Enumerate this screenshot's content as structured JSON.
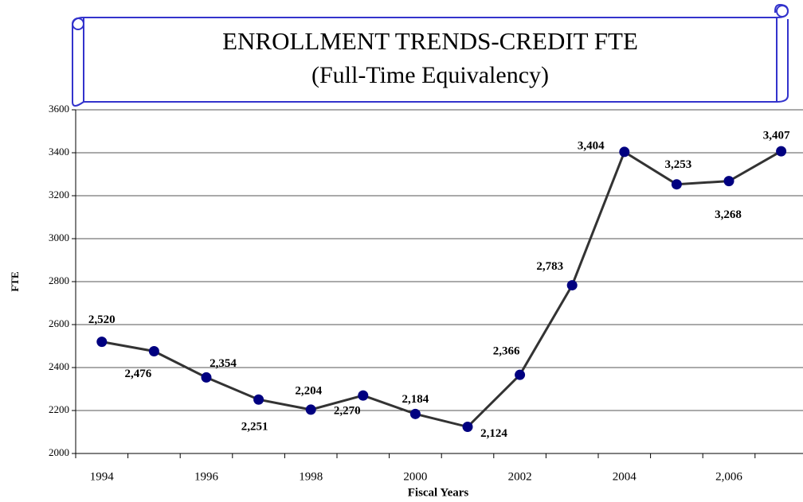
{
  "chart_data": {
    "type": "line",
    "title": "ENROLLMENT TRENDS-CREDIT FTE",
    "subtitle": "(Full-Time Equivalency)",
    "x_label": "Fiscal Years",
    "y_label": "FTE",
    "categories": [
      "1994",
      null,
      "1996",
      null,
      "1998",
      null,
      "2000",
      null,
      "2002",
      null,
      "2004",
      null,
      "2,006",
      null
    ],
    "series": [
      {
        "name": "FTE",
        "color": "#000080",
        "line_color": "#333333",
        "values": [
          2520,
          2476,
          2354,
          2251,
          2204,
          2270,
          2184,
          2124,
          2366,
          2783,
          3404,
          3253,
          3268,
          3407
        ],
        "value_labels": [
          "2,520",
          "2,476",
          "2,354",
          "2,251",
          "2,204",
          "2,270",
          "2,184",
          "2,124",
          "2,366",
          "2,783",
          "3,404",
          "3,253",
          "3,268",
          "3,407"
        ]
      }
    ],
    "ylim": [
      2000,
      3600
    ],
    "yticks": [
      2000,
      2200,
      2400,
      2600,
      2800,
      3000,
      3200,
      3400,
      3600
    ],
    "grid": true
  }
}
